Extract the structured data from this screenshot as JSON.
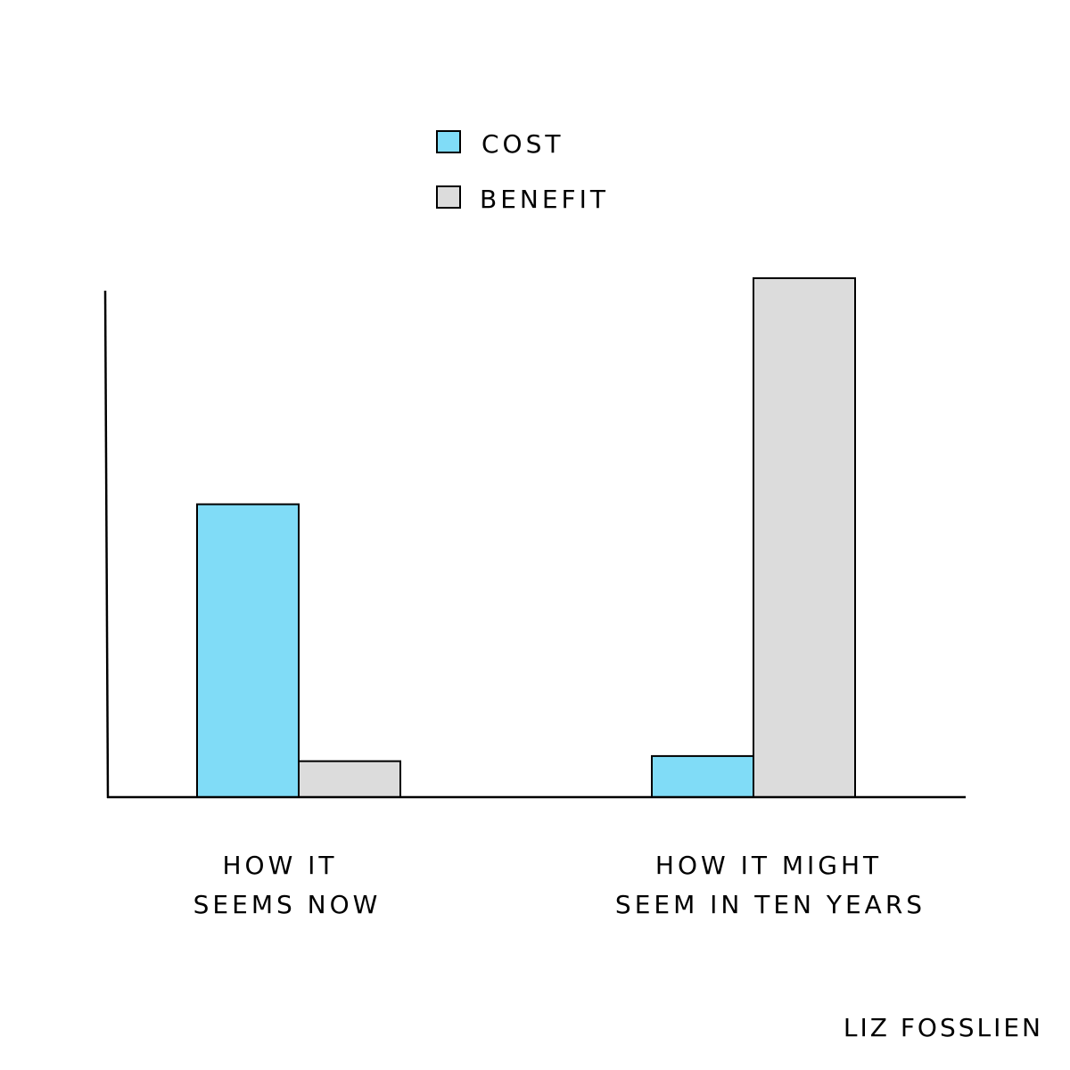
{
  "chart_data": {
    "type": "bar",
    "categories": [
      [
        "HOW IT",
        "SEEMS NOW"
      ],
      [
        "HOW IT MIGHT",
        "SEEM IN TEN YEARS"
      ]
    ],
    "series": [
      {
        "name": "COST",
        "color": "#80dcf7",
        "values": [
          57,
          8
        ]
      },
      {
        "name": "BENEFIT",
        "color": "#dcdcdc",
        "values": [
          7,
          101
        ]
      }
    ],
    "ylim": [
      0,
      101
    ],
    "legend_position": "top-center",
    "grid": false,
    "xlabel": "",
    "ylabel": ""
  },
  "signature": "LIZ FOSSLIEN"
}
